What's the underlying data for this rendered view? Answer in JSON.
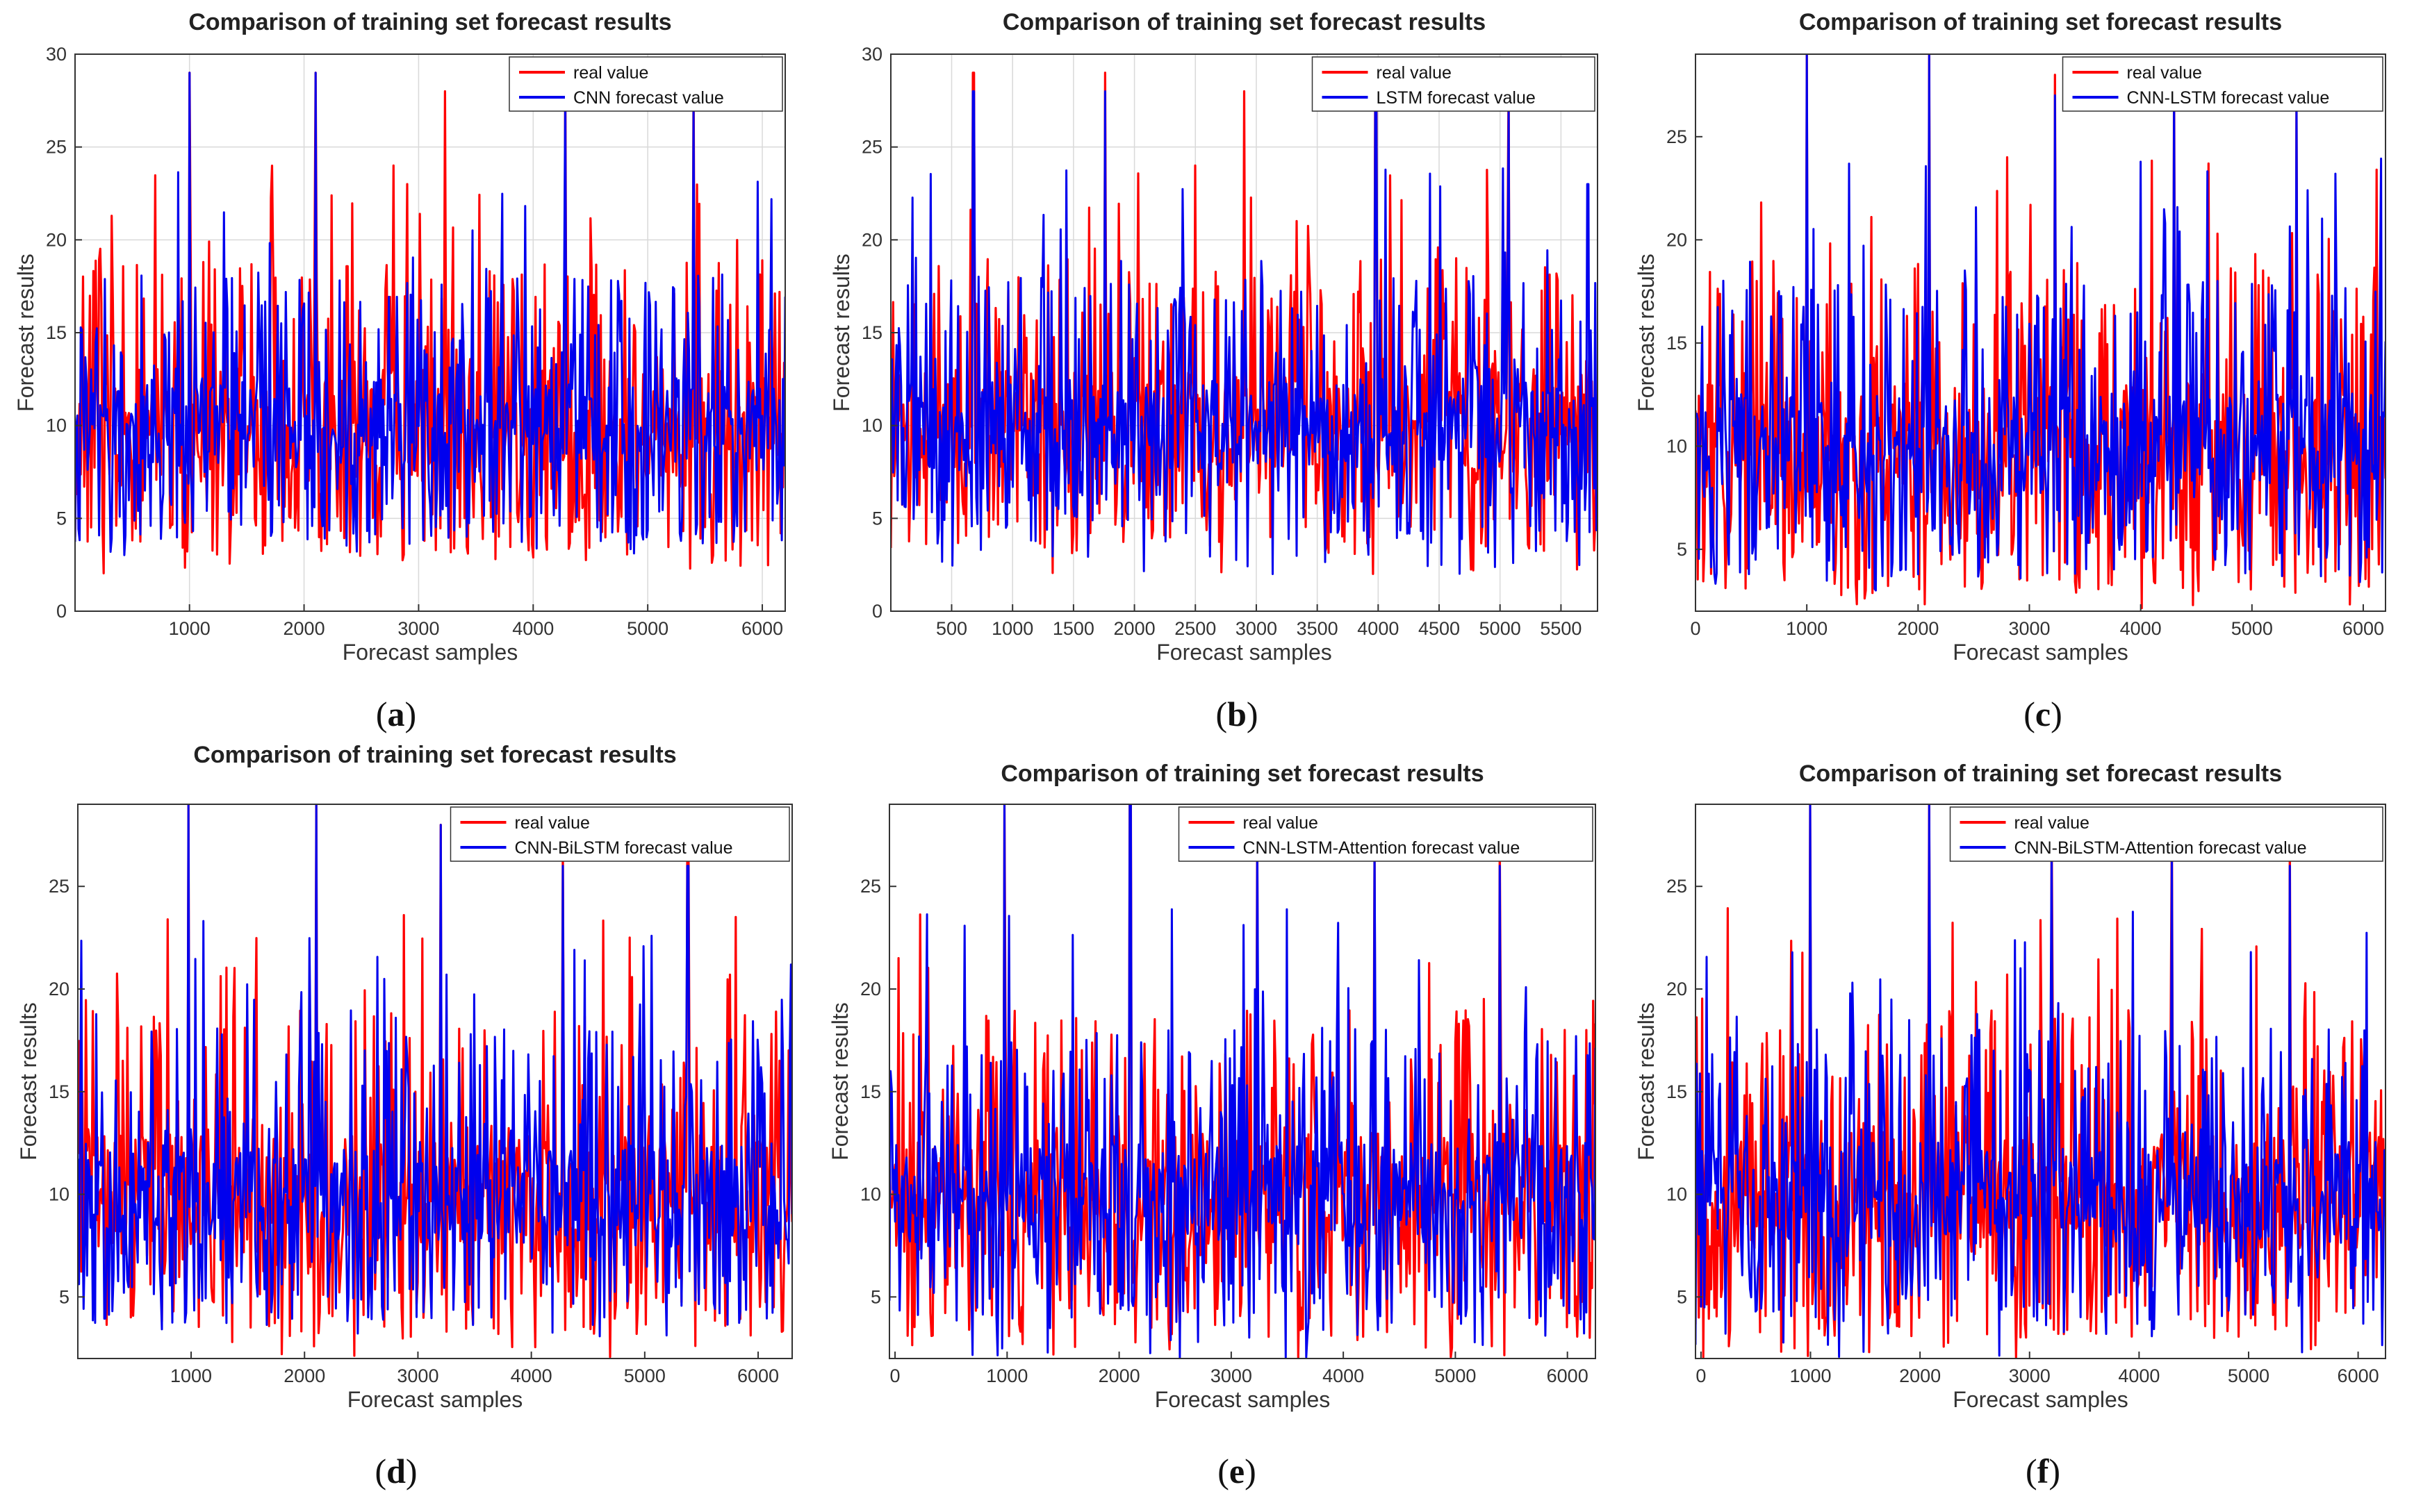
{
  "colors": {
    "real": "#ff0000",
    "forecast": "#0000ee",
    "grid": "#d9d9d9",
    "axis": "#333333"
  },
  "chart_data": [
    {
      "panel": "a",
      "type": "line",
      "title": "Comparison of training set forecast results",
      "xlabel": "Forecast samples",
      "ylabel": "Forecast results",
      "xlim": [
        1,
        6200
      ],
      "ylim": [
        0,
        30
      ],
      "xticks": [
        1000,
        2000,
        3000,
        4000,
        5000,
        6000
      ],
      "yticks": [
        0,
        5,
        10,
        15,
        20,
        25,
        30
      ],
      "grid": true,
      "legend_position": "top-right",
      "series": [
        {
          "name": "real value",
          "color": "#ff0000",
          "level": 10,
          "low": 2,
          "high": 29,
          "peaks": [
            [
              1000,
              29
            ],
            [
              2100,
              29
            ],
            [
              3230,
              28
            ],
            [
              4280,
              29
            ],
            [
              5400,
              29
            ],
            [
              2780,
              24
            ],
            [
              2900,
              23
            ]
          ]
        },
        {
          "name": "CNN forecast value",
          "color": "#0000ee",
          "level": 10,
          "low": 3,
          "high": 29,
          "peaks": [
            [
              1000,
              29
            ],
            [
              2100,
              29
            ],
            [
              4280,
              28
            ],
            [
              5400,
              27
            ]
          ]
        }
      ]
    },
    {
      "panel": "b",
      "type": "line",
      "title": "Comparison of training set forecast results",
      "xlabel": "Forecast samples",
      "ylabel": "Forecast results",
      "xlim": [
        1,
        5800
      ],
      "ylim": [
        0,
        30
      ],
      "xticks": [
        500,
        1000,
        1500,
        2000,
        2500,
        3000,
        3500,
        4000,
        4500,
        5000,
        5500
      ],
      "yticks": [
        0,
        5,
        10,
        15,
        20,
        25,
        30
      ],
      "grid": true,
      "legend_position": "top-right",
      "series": [
        {
          "name": "real value",
          "color": "#ff0000",
          "level": 10,
          "low": 2,
          "high": 29,
          "peaks": [
            [
              680,
              29
            ],
            [
              1760,
              29
            ],
            [
              2900,
              28
            ],
            [
              3980,
              29
            ],
            [
              5070,
              29
            ],
            [
              2500,
              24
            ]
          ]
        },
        {
          "name": "LSTM forecast value",
          "color": "#0000ee",
          "level": 10,
          "low": 2,
          "high": 29,
          "peaks": [
            [
              680,
              28
            ],
            [
              1760,
              28
            ],
            [
              3980,
              27
            ],
            [
              5070,
              27
            ],
            [
              5720,
              23
            ]
          ]
        }
      ]
    },
    {
      "panel": "c",
      "type": "line",
      "title": "Comparison of training set forecast results",
      "xlabel": "Forecast samples",
      "ylabel": "Forecast results",
      "xlim": [
        0,
        6200
      ],
      "ylim": [
        2,
        29
      ],
      "xticks": [
        0,
        1000,
        2000,
        3000,
        4000,
        5000,
        6000
      ],
      "yticks": [
        5,
        10,
        15,
        20,
        25
      ],
      "grid": false,
      "legend_position": "top-right",
      "series": [
        {
          "name": "real value",
          "color": "#ff0000",
          "level": 10,
          "low": 2,
          "high": 29,
          "peaks": [
            [
              1000,
              29
            ],
            [
              2100,
              29
            ],
            [
              3230,
              28
            ],
            [
              4300,
              28
            ],
            [
              5400,
              27
            ],
            [
              2800,
              24
            ]
          ]
        },
        {
          "name": "CNN-LSTM forecast value",
          "color": "#0000ee",
          "level": 10,
          "low": 3,
          "high": 29,
          "peaks": [
            [
              1000,
              29
            ],
            [
              2100,
              29
            ],
            [
              3230,
              27
            ],
            [
              4300,
              27
            ],
            [
              5400,
              27
            ]
          ]
        }
      ]
    },
    {
      "panel": "d",
      "type": "line",
      "title": "Comparison of training set forecast results",
      "xlabel": "Forecast samples",
      "ylabel": "Forecast results",
      "xlim": [
        1,
        6300
      ],
      "ylim": [
        2,
        29
      ],
      "xticks": [
        1000,
        2000,
        3000,
        4000,
        5000,
        6000
      ],
      "yticks": [
        5,
        10,
        15,
        20,
        25
      ],
      "grid": false,
      "legend_position": "top-right",
      "series": [
        {
          "name": "real value",
          "color": "#ff0000",
          "level": 10,
          "low": 2,
          "high": 29,
          "peaks": [
            [
              980,
              29
            ],
            [
              2100,
              29
            ],
            [
              3200,
              28
            ],
            [
              4280,
              27
            ],
            [
              5380,
              27
            ]
          ]
        },
        {
          "name": "CNN-BiLSTM forecast value",
          "color": "#0000ee",
          "level": 10,
          "low": 3,
          "high": 29,
          "peaks": [
            [
              980,
              29
            ],
            [
              2100,
              29
            ],
            [
              3200,
              28
            ],
            [
              4280,
              26
            ],
            [
              5380,
              26
            ]
          ]
        }
      ]
    },
    {
      "panel": "e",
      "type": "line",
      "title": "Comparison of training set forecast results",
      "xlabel": "Forecast samples",
      "ylabel": "Forecast results",
      "xlim": [
        -50,
        6250
      ],
      "ylim": [
        2,
        29
      ],
      "xticks": [
        0,
        1000,
        2000,
        3000,
        4000,
        5000,
        6000
      ],
      "yticks": [
        5,
        10,
        15,
        20,
        25
      ],
      "grid": false,
      "legend_position": "top-right",
      "series": [
        {
          "name": "real value",
          "color": "#ff0000",
          "level": 10,
          "low": 2,
          "high": 29,
          "peaks": [
            [
              980,
              29
            ],
            [
              2100,
              29
            ],
            [
              3230,
              28
            ],
            [
              4280,
              27
            ],
            [
              5400,
              27
            ]
          ]
        },
        {
          "name": "CNN-LSTM-Attention forecast value",
          "color": "#0000ee",
          "level": 10,
          "low": 2,
          "high": 29,
          "peaks": [
            [
              980,
              29
            ],
            [
              2100,
              29
            ],
            [
              3230,
              27
            ],
            [
              4280,
              27
            ],
            [
              5400,
              26
            ]
          ]
        }
      ]
    },
    {
      "panel": "f",
      "type": "line",
      "title": "Comparison of training set forecast results",
      "xlabel": "Forecast samples",
      "ylabel": "Forecast results",
      "xlim": [
        -50,
        6250
      ],
      "ylim": [
        2,
        29
      ],
      "xticks": [
        0,
        1000,
        2000,
        3000,
        4000,
        5000,
        6000
      ],
      "yticks": [
        5,
        10,
        15,
        20,
        25
      ],
      "grid": false,
      "legend_position": "top-right",
      "series": [
        {
          "name": "real value",
          "color": "#ff0000",
          "level": 10,
          "low": 2,
          "high": 29,
          "peaks": [
            [
              1000,
              29
            ],
            [
              2080,
              29
            ],
            [
              3200,
              28
            ],
            [
              4300,
              28
            ],
            [
              5380,
              27
            ]
          ]
        },
        {
          "name": "CNN-BiLSTM-Attention forecast value",
          "color": "#0000ee",
          "level": 10,
          "low": 2,
          "high": 29,
          "peaks": [
            [
              1000,
              29
            ],
            [
              2080,
              29
            ],
            [
              3200,
              27
            ],
            [
              4300,
              27
            ],
            [
              5380,
              26
            ]
          ]
        }
      ]
    }
  ],
  "panel_labels": [
    {
      "open": "(",
      "letter": "a",
      "close": ")"
    },
    {
      "open": "(",
      "letter": "b",
      "close": ")"
    },
    {
      "open": "(",
      "letter": "c",
      "close": ")"
    },
    {
      "open": "(",
      "letter": "d",
      "close": ")"
    },
    {
      "open": "(",
      "letter": "e",
      "close": ")"
    },
    {
      "open": "(",
      "letter": "f",
      "close": ")"
    }
  ]
}
